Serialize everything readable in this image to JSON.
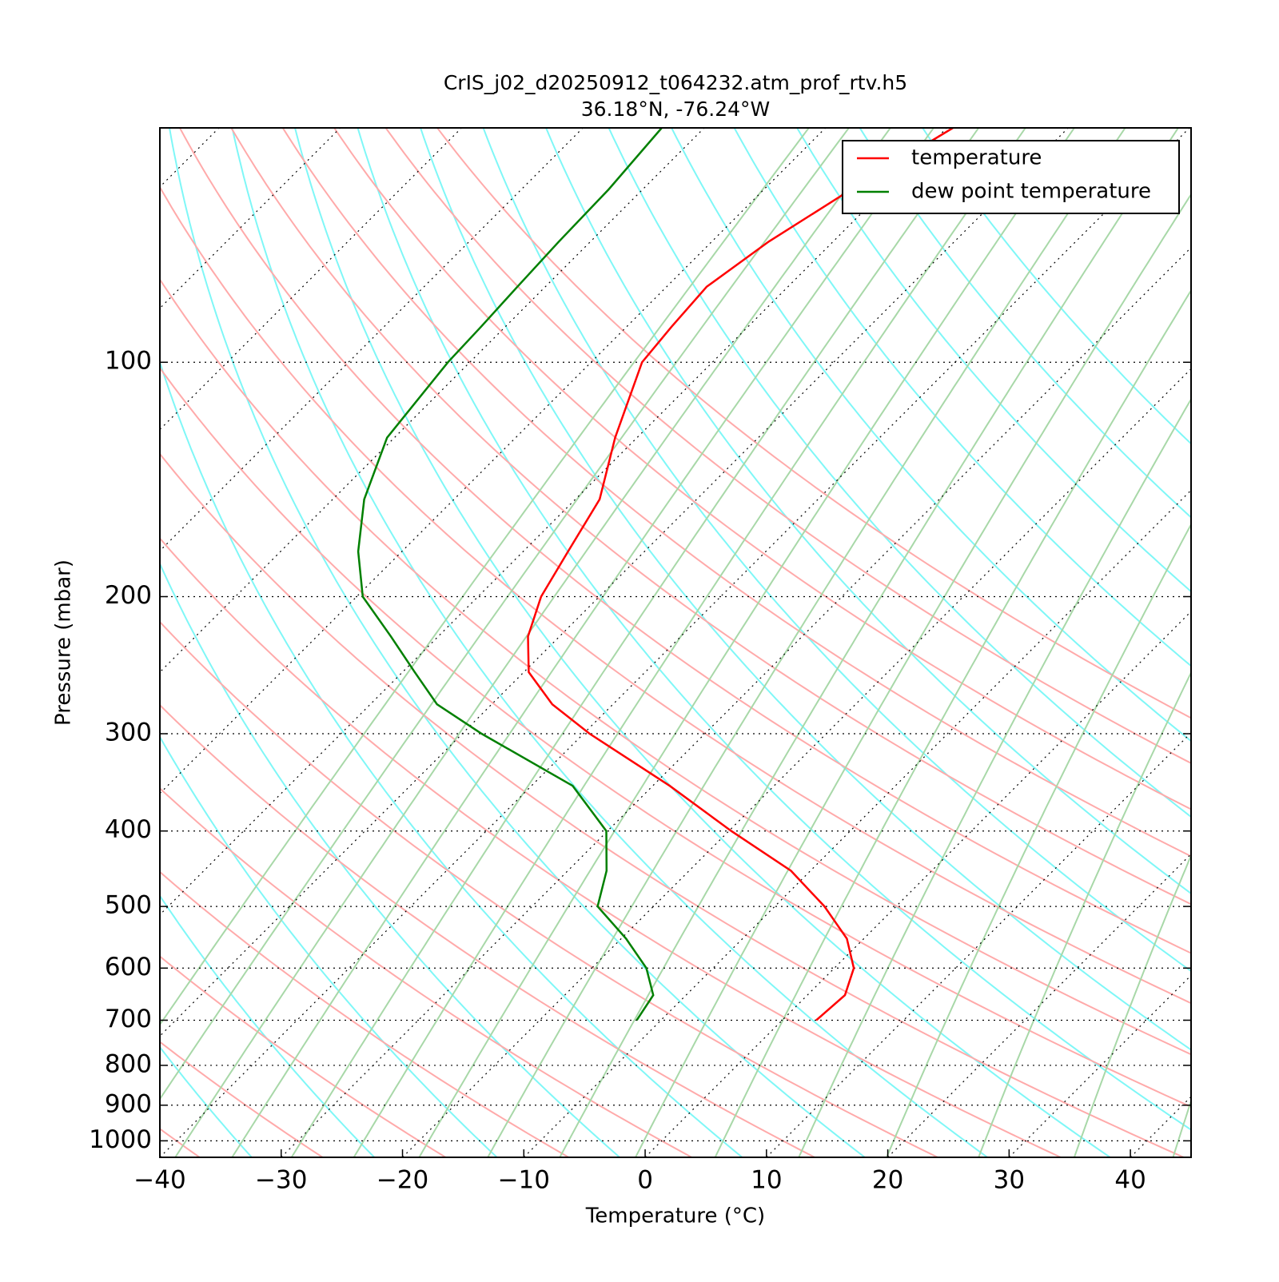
{
  "chart_data": {
    "type": "skewt",
    "title": "CrIS_j02_d20250912_t064232.atm_prof_rtv.h5",
    "subtitle": "36.18°N, -76.24°W",
    "x_label": "Temperature (°C)",
    "y_label": "Pressure (mbar)",
    "xlim": [
      -40,
      45
    ],
    "xticks": [
      {
        "value": -40,
        "label": "−40"
      },
      {
        "value": -30,
        "label": "−30"
      },
      {
        "value": -20,
        "label": "−20"
      },
      {
        "value": -10,
        "label": "−10"
      },
      0,
      10,
      20,
      30,
      40
    ],
    "ylim": [
      1050,
      50
    ],
    "yticks": [
      100,
      200,
      300,
      400,
      500,
      600,
      700,
      800,
      900,
      1000
    ],
    "log_y": true,
    "grid": true,
    "legend": "upper right",
    "pressure": [
      700,
      650,
      600,
      550,
      500,
      450,
      400,
      350,
      300,
      275,
      250,
      225,
      200,
      175,
      150,
      125,
      100,
      90,
      80,
      70,
      60,
      50
    ],
    "series": [
      {
        "name": "temperature",
        "color": "#ff0000",
        "values": [
          2.8,
          3.1,
          1.6,
          -1.4,
          -5.9,
          -11.6,
          -19.8,
          -28.6,
          -39.5,
          -45.0,
          -49.6,
          -52.6,
          -54.8,
          -56.3,
          -58.0,
          -61.8,
          -65.8,
          -66.3,
          -66.7,
          -65.3,
          -62.8,
          -59.5
        ]
      },
      {
        "name": "dew point temperature",
        "color": "#008000",
        "values": [
          -12.0,
          -12.7,
          -15.5,
          -19.6,
          -24.6,
          -26.8,
          -30.1,
          -36.6,
          -48.4,
          -54.5,
          -59.0,
          -63.9,
          -69.5,
          -73.6,
          -77.4,
          -80.6,
          -81.8,
          -82.0,
          -82.3,
          -82.6,
          -82.8,
          -83.5
        ]
      }
    ]
  }
}
